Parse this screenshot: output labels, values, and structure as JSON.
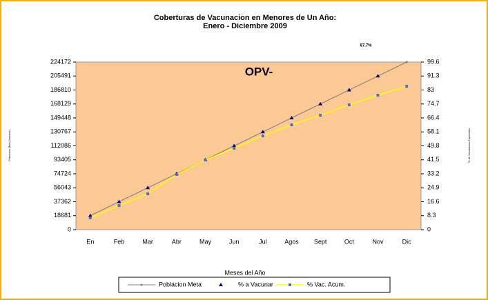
{
  "chart_data": {
    "type": "line",
    "title": "Coberturas de Vacunacion en Menores de Un Año:",
    "subtitle": "Enero - Diciembre 2009",
    "annotations": [
      "87.7%",
      "OPV-"
    ],
    "y_label": "Poblacion Meta (Numero)",
    "y2_label": "% de Vacunados Esperados",
    "x_label": "Meses del Año",
    "categories": [
      "En",
      "Feb",
      "Mar",
      "Abr",
      "May",
      "Jun",
      "Jul",
      "Agos",
      "Sept",
      "Oct",
      "Nov",
      "Dic"
    ],
    "ylim": [
      0,
      224172
    ],
    "yticks": [
      0,
      18681,
      37362,
      56043,
      74724,
      93405,
      112086,
      130767,
      149448,
      168129,
      186810,
      205491,
      224172
    ],
    "y2lim": [
      0,
      99.6
    ],
    "y2ticks": [
      0,
      8.3,
      16.6,
      24.9,
      33.2,
      41.5,
      49.8,
      58.1,
      66.4,
      74.7,
      83,
      91.3,
      99.6
    ],
    "series": [
      {
        "name": "Poblacion Meta",
        "color": "#808080",
        "values": [
          18681,
          37362,
          56043,
          74724,
          93405,
          112086,
          130767,
          149448,
          168129,
          186810,
          205491,
          224172
        ]
      },
      {
        "name": "% a Vacunar",
        "color": "#000080",
        "axis": "y2",
        "values": [
          8.3,
          16.6,
          24.9,
          33.2,
          41.5,
          49.8,
          58.1,
          66.4,
          74.7,
          83,
          91.3,
          null
        ]
      },
      {
        "name": "% Vac. Acum.",
        "color": "#ffff00",
        "axis": "y2",
        "values": [
          7.0,
          14.3,
          21.3,
          32.8,
          41.4,
          48.4,
          55.7,
          62.3,
          68.0,
          74.2,
          79.9,
          85.2
        ]
      }
    ],
    "legend": "bottom"
  }
}
